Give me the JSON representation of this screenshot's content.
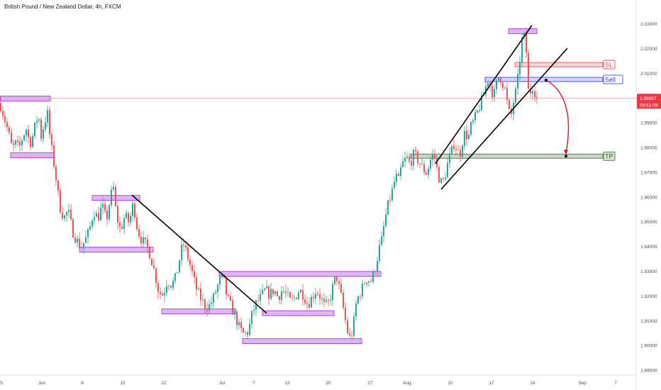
{
  "header": {
    "title": "British Pound / New Zealand Dollar, 4h, FXCM"
  },
  "colors": {
    "bull": "#26a69a",
    "bear": "#ef5350",
    "zone_fill": "#d59bf5",
    "zone_stroke": "#9b27e0",
    "sl": "#f23645",
    "sell": "#2a2aff",
    "tp_fill": "#8aa57a",
    "tp_text": "#1f6b1f",
    "price_line": "#ef5350",
    "price_badge": "#f23645",
    "arrow": "#d5112a",
    "trend": "#000000"
  },
  "price_badge": {
    "price": "1.99997",
    "countdown": "03:52:09"
  },
  "labels": {
    "sl": "SL",
    "sell": "Sell",
    "tp": "TP"
  },
  "chart_data": {
    "type": "candlestick",
    "title": "British Pound / New Zealand Dollar, 4h, FXCM",
    "ylim": [
      1.884,
      2.036
    ],
    "y_ticks": [
      "2.03000",
      "2.02000",
      "2.01000",
      "2.00000",
      "1.99000",
      "1.98000",
      "1.97000",
      "1.96000",
      "1.95000",
      "1.94000",
      "1.93000",
      "1.92000",
      "1.91000",
      "1.90000",
      "1.89000"
    ],
    "x_ticks": [
      "5",
      "Jun",
      "8",
      "15",
      "22",
      "Jul",
      "7",
      "13",
      "20",
      "27",
      "Aug",
      "10",
      "17",
      "24",
      "Sep",
      "7"
    ],
    "last_price": 1.99997,
    "levels": {
      "sl": 2.0135,
      "sell": 2.0075,
      "tp": 1.9765
    },
    "price_path": [
      [
        0,
        1.998
      ],
      [
        6,
        1.992
      ],
      [
        12,
        1.986
      ],
      [
        17,
        1.9795
      ],
      [
        22,
        1.9815
      ],
      [
        27,
        1.9795
      ],
      [
        32,
        1.9845
      ],
      [
        37,
        1.9875
      ],
      [
        42,
        1.9815
      ],
      [
        46,
        1.9845
      ],
      [
        50,
        1.9895
      ],
      [
        54,
        1.9935
      ],
      [
        58,
        1.9845
      ],
      [
        63,
        1.9905
      ],
      [
        67,
        1.9935
      ],
      [
        71,
        1.9825
      ],
      [
        75,
        1.9755
      ],
      [
        79,
        1.9675
      ],
      [
        84,
        1.9565
      ],
      [
        90,
        1.9515
      ],
      [
        96,
        1.9545
      ],
      [
        102,
        1.9465
      ],
      [
        108,
        1.9425
      ],
      [
        114,
        1.9395
      ],
      [
        120,
        1.9425
      ],
      [
        126,
        1.9465
      ],
      [
        132,
        1.9545
      ],
      [
        138,
        1.9515
      ],
      [
        144,
        1.9565
      ],
      [
        150,
        1.9505
      ],
      [
        156,
        1.9605
      ],
      [
        160,
        1.9635
      ],
      [
        164,
        1.9525
      ],
      [
        170,
        1.9465
      ],
      [
        176,
        1.9525
      ],
      [
        182,
        1.9495
      ],
      [
        188,
        1.9575
      ],
      [
        194,
        1.9465
      ],
      [
        200,
        1.9425
      ],
      [
        206,
        1.9405
      ],
      [
        212,
        1.9365
      ],
      [
        218,
        1.9295
      ],
      [
        224,
        1.9215
      ],
      [
        230,
        1.9205
      ],
      [
        236,
        1.9265
      ],
      [
        242,
        1.9245
      ],
      [
        248,
        1.9275
      ],
      [
        252,
        1.9335
      ],
      [
        258,
        1.9415
      ],
      [
        264,
        1.9365
      ],
      [
        270,
        1.9305
      ],
      [
        276,
        1.9235
      ],
      [
        282,
        1.9195
      ],
      [
        288,
        1.9165
      ],
      [
        294,
        1.9155
      ],
      [
        300,
        1.9185
      ],
      [
        306,
        1.9235
      ],
      [
        312,
        1.9275
      ],
      [
        316,
        1.9255
      ],
      [
        320,
        1.9195
      ],
      [
        326,
        1.9155
      ],
      [
        332,
        1.9115
      ],
      [
        338,
        1.9065
      ],
      [
        344,
        1.9045
      ],
      [
        350,
        1.9055
      ],
      [
        356,
        1.9135
      ],
      [
        362,
        1.9175
      ],
      [
        368,
        1.9195
      ],
      [
        374,
        1.9225
      ],
      [
        380,
        1.9205
      ],
      [
        386,
        1.9225
      ],
      [
        392,
        1.9195
      ],
      [
        398,
        1.9225
      ],
      [
        404,
        1.9205
      ],
      [
        410,
        1.9175
      ],
      [
        416,
        1.9195
      ],
      [
        422,
        1.9225
      ],
      [
        428,
        1.9205
      ],
      [
        434,
        1.9165
      ],
      [
        440,
        1.9195
      ],
      [
        446,
        1.9225
      ],
      [
        452,
        1.9195
      ],
      [
        458,
        1.9155
      ],
      [
        464,
        1.9175
      ],
      [
        470,
        1.9245
      ],
      [
        474,
        1.9285
      ],
      [
        478,
        1.9235
      ],
      [
        482,
        1.9185
      ],
      [
        486,
        1.9115
      ],
      [
        490,
        1.9055
      ],
      [
        494,
        1.9025
      ],
      [
        498,
        1.9075
      ],
      [
        502,
        1.9165
      ],
      [
        506,
        1.9205
      ],
      [
        510,
        1.9225
      ],
      [
        514,
        1.9255
      ],
      [
        518,
        1.9275
      ],
      [
        522,
        1.9255
      ],
      [
        526,
        1.9285
      ],
      [
        530,
        1.9325
      ],
      [
        534,
        1.9385
      ],
      [
        538,
        1.9425
      ],
      [
        542,
        1.9495
      ],
      [
        546,
        1.9555
      ],
      [
        550,
        1.9595
      ],
      [
        554,
        1.9635
      ],
      [
        558,
        1.9685
      ],
      [
        562,
        1.9665
      ],
      [
        566,
        1.9725
      ],
      [
        570,
        1.9745
      ],
      [
        574,
        1.9755
      ],
      [
        578,
        1.9735
      ],
      [
        584,
        1.9775
      ],
      [
        590,
        1.9745
      ],
      [
        596,
        1.9715
      ],
      [
        602,
        1.9695
      ],
      [
        606,
        1.9745
      ],
      [
        612,
        1.9775
      ],
      [
        616,
        1.9715
      ],
      [
        620,
        1.9665
      ],
      [
        624,
        1.9655
      ],
      [
        628,
        1.9695
      ],
      [
        632,
        1.9745
      ],
      [
        636,
        1.9775
      ],
      [
        640,
        1.9815
      ],
      [
        644,
        1.9795
      ],
      [
        648,
        1.9765
      ],
      [
        652,
        1.9825
      ],
      [
        656,
        1.9865
      ],
      [
        660,
        1.9835
      ],
      [
        664,
        1.9885
      ],
      [
        668,
        1.9905
      ],
      [
        672,
        1.9935
      ],
      [
        676,
        1.9965
      ],
      [
        680,
        1.9995
      ],
      [
        684,
        2.0035
      ],
      [
        688,
        2.0075
      ],
      [
        692,
        2.0045
      ],
      [
        696,
        2.0005
      ],
      [
        700,
        2.0055
      ],
      [
        704,
        2.0095
      ],
      [
        708,
        2.0065
      ],
      [
        712,
        2.0035
      ],
      [
        716,
        1.9965
      ],
      [
        720,
        1.9915
      ],
      [
        724,
        1.9985
      ],
      [
        728,
        2.0035
      ],
      [
        730,
        2.0075
      ],
      [
        733,
        2.0155
      ],
      [
        736,
        2.0235
      ],
      [
        739,
        2.0245
      ],
      [
        742,
        2.0185
      ],
      [
        744,
        2.0035
      ],
      [
        747,
        2.0015
      ],
      [
        750,
        2.0055
      ],
      [
        753,
        2.0035
      ],
      [
        756,
        2.0005
      ],
      [
        759,
        1.9985
      ]
    ],
    "zones": [
      {
        "x1": 0,
        "x2": 71,
        "y": 1.9998
      },
      {
        "x1": 15,
        "x2": 76,
        "y": 1.97685
      },
      {
        "x1": 130,
        "x2": 197,
        "y": 1.9596
      },
      {
        "x1": 112,
        "x2": 216,
        "y": 1.9387
      },
      {
        "x1": 228,
        "x2": 332,
        "y": 1.91375
      },
      {
        "x1": 309,
        "x2": 537,
        "y": 1.9289
      },
      {
        "x1": 370,
        "x2": 471,
        "y": 1.91305
      },
      {
        "x1": 342,
        "x2": 510,
        "y": 1.90175
      },
      {
        "x1": 717,
        "x2": 757,
        "y": 2.027
      }
    ],
    "trendlines": [
      [
        [
          186,
          1.9608
        ],
        [
          376,
          1.913
        ]
      ],
      [
        [
          614,
          1.9735
        ],
        [
          750,
          2.02935
        ]
      ],
      [
        [
          622,
          1.9631
        ],
        [
          800,
          2.0201
        ]
      ],
      [
        [
          13,
          1.99975
        ],
        [
          13,
          1.99975
        ]
      ]
    ]
  }
}
